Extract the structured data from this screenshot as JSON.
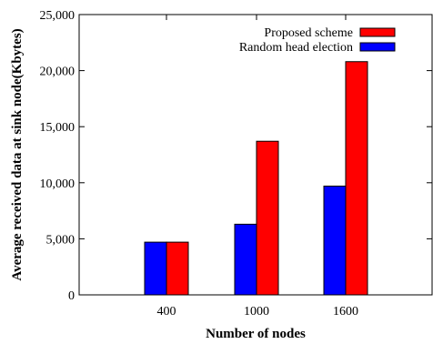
{
  "chart_data": {
    "type": "bar",
    "categories": [
      "400",
      "1000",
      "1600"
    ],
    "series": [
      {
        "name": "Random head election",
        "values": [
          4700,
          6300,
          9700
        ],
        "color": "#0000ff"
      },
      {
        "name": "Proposed scheme",
        "values": [
          4700,
          13700,
          20800
        ],
        "color": "#ff0000"
      }
    ],
    "xlabel": "Number of nodes",
    "ylabel": "Average received data at sink node(Kbytes)",
    "ylim": [
      0,
      25000
    ],
    "yticks": [
      0,
      5000,
      10000,
      15000,
      20000,
      25000
    ],
    "ytick_labels": [
      "0",
      "5,000",
      "10,000",
      "15,000",
      "20,000",
      "25,000"
    ],
    "legend_order": [
      "Proposed scheme",
      "Random head election"
    ],
    "legend_position": "top-right",
    "grid": false
  }
}
